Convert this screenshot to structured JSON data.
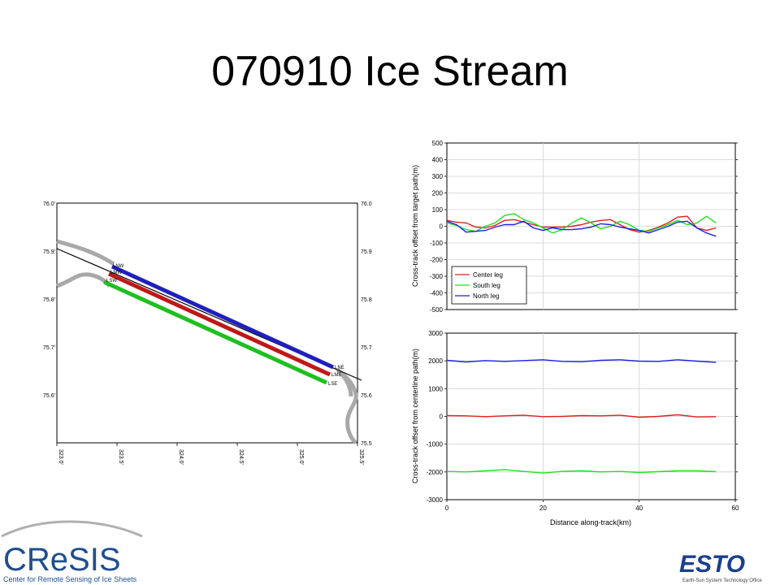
{
  "slide": {
    "title": "070910 Ice Stream"
  },
  "map": {
    "lat_labels": [
      "76.0'",
      "75.9'",
      "75.8'",
      "75.7'",
      "75.6'"
    ],
    "lat_labels_right": [
      "76.0",
      "75.9",
      "75.8",
      "75.7",
      "75.6",
      "75.5"
    ],
    "lon_labels": [
      "323.0'",
      "323.5'",
      "324.0'",
      "324.5'",
      "325.0'",
      "325.5'"
    ],
    "lat_range": [
      75.5,
      76.0
    ],
    "lon_range": [
      323.0,
      325.5
    ],
    "markers": {
      "nw": "LNW",
      "cw": "LMW",
      "sw": "LSW",
      "ne": "LNE",
      "ce": "LME",
      "se": "LSE"
    },
    "colors": {
      "north": "#1f1fbf",
      "center": "#c01818",
      "south": "#1fbf1f",
      "coast": "#a8a8a8"
    }
  },
  "chart_data": [
    {
      "type": "line",
      "ylabel": "Cross-track offset from target path(m)",
      "xlabel": "",
      "xlim": [
        0,
        60
      ],
      "ylim": [
        -500,
        500
      ],
      "yticks": [
        500,
        400,
        300,
        200,
        100,
        0,
        -100,
        -200,
        -300,
        -400,
        -500
      ],
      "legend_position": "bottom-left",
      "grid": true,
      "series": [
        {
          "name": "Center leg",
          "color": "#e02020",
          "x": [
            0,
            2,
            4,
            6,
            8,
            10,
            12,
            14,
            16,
            18,
            20,
            22,
            24,
            26,
            28,
            30,
            32,
            34,
            36,
            38,
            40,
            42,
            44,
            46,
            48,
            50,
            52,
            54,
            56
          ],
          "y": [
            35,
            25,
            20,
            -5,
            -10,
            5,
            35,
            40,
            25,
            10,
            -5,
            -5,
            -5,
            0,
            10,
            25,
            35,
            40,
            10,
            -20,
            -35,
            -25,
            -5,
            20,
            55,
            60,
            -10,
            -25,
            -10
          ]
        },
        {
          "name": "South leg",
          "color": "#20e020",
          "x": [
            0,
            2,
            4,
            6,
            8,
            10,
            12,
            14,
            16,
            18,
            20,
            22,
            24,
            26,
            28,
            30,
            32,
            34,
            36,
            38,
            40,
            42,
            44,
            46,
            48,
            50,
            52,
            54,
            56
          ],
          "y": [
            20,
            5,
            -20,
            -30,
            0,
            20,
            65,
            75,
            40,
            20,
            -10,
            -40,
            -20,
            20,
            50,
            20,
            -15,
            0,
            30,
            10,
            -25,
            -30,
            -10,
            10,
            35,
            10,
            20,
            60,
            20
          ]
        },
        {
          "name": "North leg",
          "color": "#2020e0",
          "x": [
            0,
            2,
            4,
            6,
            8,
            10,
            12,
            14,
            16,
            18,
            20,
            22,
            24,
            26,
            28,
            30,
            32,
            34,
            36,
            38,
            40,
            42,
            44,
            46,
            48,
            50,
            52,
            54,
            56
          ],
          "y": [
            30,
            10,
            -35,
            -30,
            -25,
            -5,
            10,
            10,
            30,
            -10,
            -25,
            -10,
            -20,
            -20,
            -15,
            -5,
            15,
            10,
            -5,
            -15,
            -25,
            -40,
            -20,
            0,
            25,
            30,
            -10,
            -40,
            -60
          ]
        }
      ]
    },
    {
      "type": "line",
      "ylabel": "Cross-track offset from centerline path(m)",
      "xlabel": "Distance along-track(km)",
      "xlim": [
        0,
        60
      ],
      "ylim": [
        -3000,
        3000
      ],
      "yticks": [
        3000,
        2000,
        1000,
        0,
        -1000,
        -2000,
        -3000
      ],
      "xticks": [
        0,
        20,
        40,
        60
      ],
      "grid": true,
      "series": [
        {
          "name": "North leg",
          "color": "#2020e0",
          "x": [
            0,
            4,
            8,
            12,
            16,
            20,
            24,
            28,
            32,
            36,
            40,
            44,
            48,
            52,
            56
          ],
          "y": [
            2020,
            1960,
            2010,
            1980,
            2010,
            2040,
            1980,
            1970,
            2020,
            2040,
            1990,
            1980,
            2040,
            1990,
            1950
          ]
        },
        {
          "name": "Center leg",
          "color": "#e02020",
          "x": [
            0,
            4,
            8,
            12,
            16,
            20,
            24,
            28,
            32,
            36,
            40,
            44,
            48,
            52,
            56
          ],
          "y": [
            30,
            20,
            -10,
            20,
            40,
            -10,
            0,
            30,
            20,
            40,
            -30,
            0,
            60,
            -20,
            -10
          ]
        },
        {
          "name": "South leg",
          "color": "#20e020",
          "x": [
            0,
            4,
            8,
            12,
            16,
            20,
            24,
            28,
            32,
            36,
            40,
            44,
            48,
            52,
            56
          ],
          "y": [
            -1980,
            -2000,
            -1960,
            -1920,
            -1980,
            -2040,
            -1980,
            -1960,
            -2000,
            -1980,
            -2020,
            -1990,
            -1960,
            -1960,
            -1990
          ]
        }
      ]
    }
  ],
  "logos": {
    "cresis_text": "CReSIS",
    "cresis_sub": "Center for Remote Sensing of Ice Sheets",
    "esto_text": "ESTO",
    "esto_sub": "Earth-Sun System Technology Office"
  }
}
